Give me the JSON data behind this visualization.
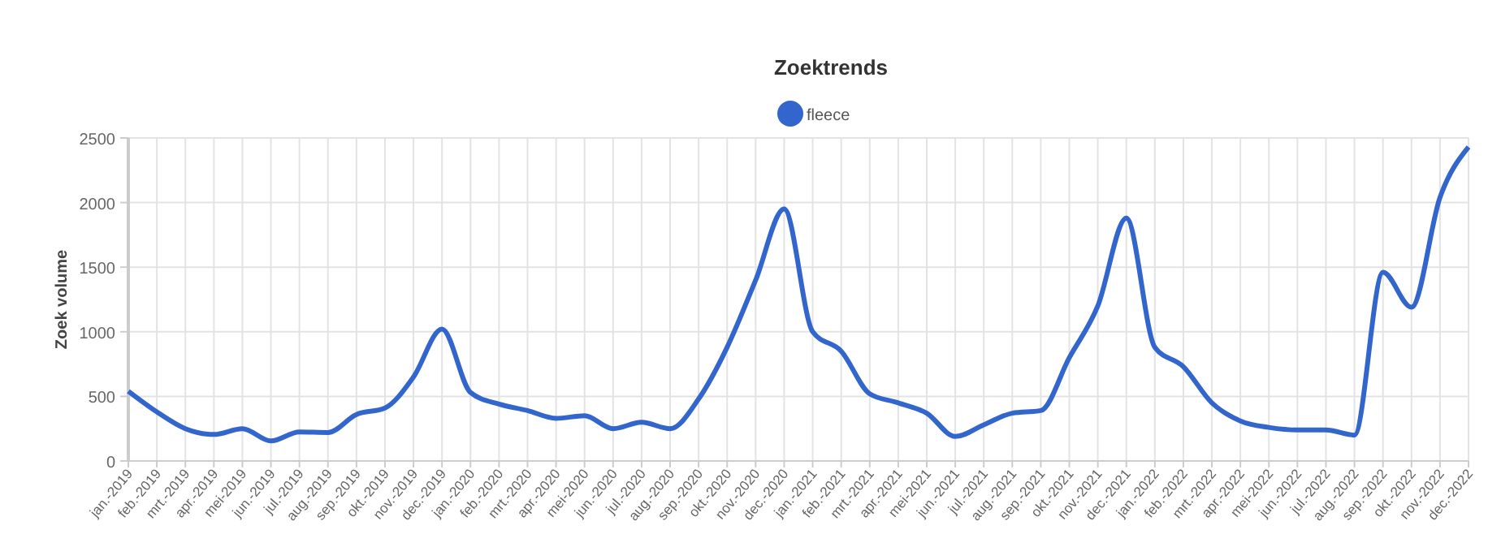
{
  "chart_data": {
    "type": "line",
    "title": "Zoektrends",
    "ylabel": "Zoek volume",
    "categories": [
      "jan.-2019",
      "feb.-2019",
      "mrt.-2019",
      "apr.-2019",
      "mei-2019",
      "jun.-2019",
      "jul.-2019",
      "aug.-2019",
      "sep.-2019",
      "okt.-2019",
      "nov.-2019",
      "dec.-2019",
      "jan.-2020",
      "feb.-2020",
      "mrt.-2020",
      "apr.-2020",
      "mei-2020",
      "jun.-2020",
      "jul.-2020",
      "aug.-2020",
      "sep.-2020",
      "okt.-2020",
      "nov.-2020",
      "dec.-2020",
      "jan.-2021",
      "feb.-2021",
      "mrt.-2021",
      "apr.-2021",
      "mei-2021",
      "jun.-2021",
      "jul.-2021",
      "aug.-2021",
      "sep.-2021",
      "okt.-2021",
      "nov.-2021",
      "dec.-2021",
      "jan.-2022",
      "feb.-2022",
      "mrt.-2022",
      "apr.-2022",
      "mei-2022",
      "jun.-2022",
      "jul.-2022",
      "aug.-2022",
      "sep.-2022",
      "okt.-2022",
      "nov.-2022",
      "dec.-2022"
    ],
    "series": [
      {
        "name": "fleece",
        "color": "#3366cc",
        "values": [
          540,
          380,
          250,
          205,
          250,
          155,
          225,
          220,
          360,
          410,
          650,
          1020,
          530,
          440,
          390,
          330,
          350,
          250,
          300,
          250,
          480,
          880,
          1400,
          1950,
          1000,
          850,
          520,
          450,
          370,
          190,
          280,
          370,
          390,
          800,
          1200,
          1880,
          880,
          730,
          450,
          310,
          260,
          240,
          240,
          200,
          1460,
          1190,
          2040,
          2430
        ]
      }
    ],
    "ylim": [
      0,
      2500
    ],
    "yticks": [
      0,
      500,
      1000,
      1500,
      2000,
      2500
    ],
    "grid": true,
    "legend": "top",
    "marker": "none",
    "line_style": "solid"
  }
}
